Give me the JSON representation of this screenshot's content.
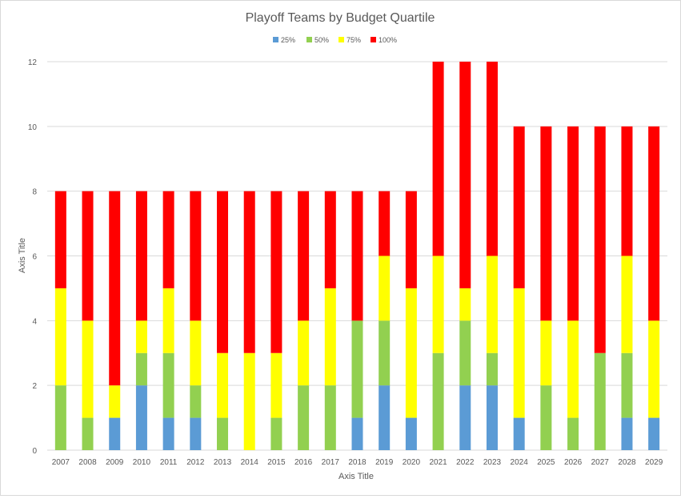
{
  "chart_data": {
    "type": "bar",
    "stacked": true,
    "title": "Playoff Teams by Budget Quartile",
    "xlabel": "Axis Title",
    "ylabel": "Axis Title",
    "ylim": [
      0,
      12
    ],
    "yticks": [
      0,
      2,
      4,
      6,
      8,
      10,
      12
    ],
    "grid": true,
    "legend": "top",
    "categories": [
      "2007",
      "2008",
      "2009",
      "2010",
      "2011",
      "2012",
      "2013",
      "2014",
      "2015",
      "2016",
      "2017",
      "2018",
      "2019",
      "2020",
      "2021",
      "2022",
      "2023",
      "2024",
      "2025",
      "2026",
      "2027",
      "2028",
      "2029"
    ],
    "series": [
      {
        "name": "25%",
        "color": "#5b9bd5",
        "values": [
          0,
          0,
          1,
          2,
          1,
          1,
          0,
          0,
          0,
          0,
          0,
          1,
          2,
          1,
          0,
          2,
          2,
          1,
          0,
          0,
          0,
          1,
          1
        ]
      },
      {
        "name": "50%",
        "color": "#92d050",
        "values": [
          2,
          1,
          0,
          1,
          2,
          1,
          1,
          0,
          1,
          2,
          2,
          3,
          2,
          0,
          3,
          2,
          1,
          0,
          2,
          1,
          3,
          2,
          0
        ]
      },
      {
        "name": "75%",
        "color": "#ffff00",
        "values": [
          3,
          3,
          1,
          1,
          2,
          2,
          2,
          3,
          2,
          2,
          3,
          0,
          2,
          4,
          3,
          1,
          3,
          4,
          2,
          3,
          0,
          3,
          3
        ]
      },
      {
        "name": "100%",
        "color": "#ff0000",
        "values": [
          3,
          4,
          6,
          4,
          3,
          4,
          5,
          5,
          5,
          4,
          3,
          4,
          2,
          3,
          6,
          7,
          6,
          5,
          6,
          6,
          7,
          4,
          6
        ]
      }
    ]
  }
}
